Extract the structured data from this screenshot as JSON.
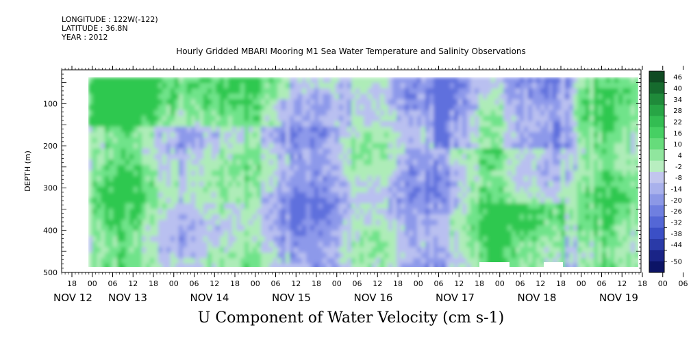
{
  "header": {
    "longitude": "LONGITUDE : 122W(-122)",
    "latitude": "LATITUDE : 36.8N",
    "year": "YEAR : 2012"
  },
  "chart_data": {
    "type": "heatmap",
    "title": "Hourly Gridded MBARI Mooring M1 Sea Water Temperature and Salinity Observations",
    "xlabel": "U Component of Water Velocity (cm s-1)",
    "ylabel": "DEPTH (m)",
    "yticks": [
      100,
      200,
      300,
      400,
      500
    ],
    "ylim": [
      500,
      20
    ],
    "hour_tick_labels": [
      "18",
      "00",
      "06",
      "12",
      "18",
      "00",
      "06",
      "12",
      "18",
      "00",
      "06",
      "12",
      "18",
      "00",
      "06",
      "12",
      "18",
      "00",
      "06",
      "12",
      "18",
      "00",
      "06",
      "12",
      "18",
      "00",
      "06",
      "12",
      "18",
      "00",
      "06",
      "12"
    ],
    "date_labels": [
      "NOV 12",
      "NOV 13",
      "NOV 14",
      "NOV 15",
      "NOV 16",
      "NOV 17",
      "NOV 18",
      "NOV 19"
    ],
    "colorbar_levels": [
      "46",
      "40",
      "34",
      "28",
      "22",
      "16",
      "10",
      "4",
      "-2",
      "-8",
      "-14",
      "-20",
      "-26",
      "-32",
      "-38",
      "-44",
      "-50"
    ],
    "colorbar_colors": [
      "#0f4a22",
      "#166b2e",
      "#1f8a3a",
      "#27a545",
      "#33bd52",
      "#46d063",
      "#66dc7b",
      "#90e69e",
      "#b8eec0",
      "#c2c6ee",
      "#a9b1ec",
      "#8c98e6",
      "#6f7fe0",
      "#5467d6",
      "#3b4fc6",
      "#2a3aa8",
      "#1a2487",
      "#0c1466"
    ],
    "field_colors": {
      "strong_green": "#2fc84f",
      "green": "#6fe38a",
      "light_green": "#aeecb8",
      "light_blue": "#b9c0f0",
      "blue": "#8d99ea",
      "strong_blue": "#5f70dd"
    }
  }
}
